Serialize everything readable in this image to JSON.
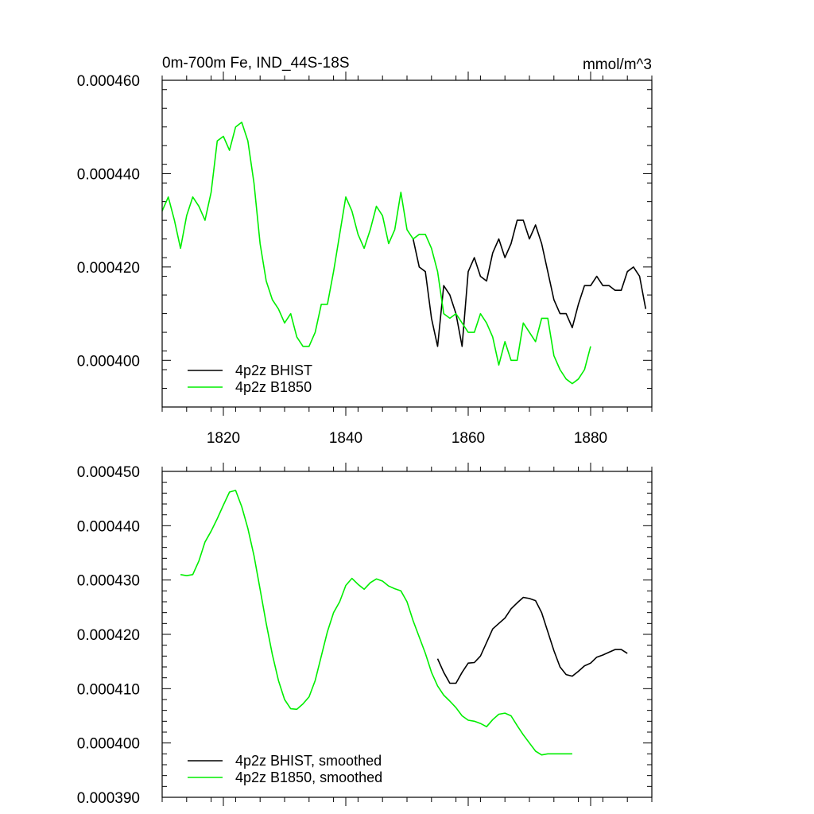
{
  "chart_data": [
    {
      "type": "line",
      "title": "0m-700m Fe, IND_44S-18S",
      "units": "mmol/m^3",
      "xlim": [
        1810,
        1890
      ],
      "ylim": [
        0.00039,
        0.00046
      ],
      "xticks": [
        1820,
        1840,
        1860,
        1880
      ],
      "xtick_labels": [
        "1820",
        "1840",
        "1860",
        "1880"
      ],
      "yticks": [
        0.0004,
        0.00042,
        0.00044,
        0.00046
      ],
      "ytick_labels": [
        "0.000400",
        "0.000420",
        "0.000440",
        "0.000460"
      ],
      "legend_position": "bottom-left",
      "series": [
        {
          "name": "4p2z BHIST",
          "color": "#000000",
          "x": [
            1851,
            1852,
            1853,
            1854,
            1855,
            1856,
            1857,
            1858,
            1859,
            1860,
            1861,
            1862,
            1863,
            1864,
            1865,
            1866,
            1867,
            1868,
            1869,
            1870,
            1871,
            1872,
            1873,
            1874,
            1875,
            1876,
            1877,
            1878,
            1879,
            1880,
            1881,
            1882,
            1883,
            1884,
            1885,
            1886,
            1887,
            1888,
            1889
          ],
          "y": [
            0.000426,
            0.00042,
            0.000419,
            0.000409,
            0.000403,
            0.000416,
            0.000414,
            0.00041,
            0.000403,
            0.000419,
            0.000422,
            0.000418,
            0.000417,
            0.000423,
            0.000426,
            0.000422,
            0.000425,
            0.00043,
            0.00043,
            0.000426,
            0.000429,
            0.000425,
            0.000419,
            0.000413,
            0.00041,
            0.00041,
            0.000407,
            0.000412,
            0.000416,
            0.000416,
            0.000418,
            0.000416,
            0.000416,
            0.000415,
            0.000415,
            0.000419,
            0.00042,
            0.000418,
            0.000411
          ]
        },
        {
          "name": "4p2z B1850",
          "color": "#00ee00",
          "x": [
            1810,
            1811,
            1812,
            1813,
            1814,
            1815,
            1816,
            1817,
            1818,
            1819,
            1820,
            1821,
            1822,
            1823,
            1824,
            1825,
            1826,
            1827,
            1828,
            1829,
            1830,
            1831,
            1832,
            1833,
            1834,
            1835,
            1836,
            1837,
            1838,
            1839,
            1840,
            1841,
            1842,
            1843,
            1844,
            1845,
            1846,
            1847,
            1848,
            1849,
            1850,
            1851,
            1852,
            1853,
            1854,
            1855,
            1856,
            1857,
            1858,
            1859,
            1860,
            1861,
            1862,
            1863,
            1864,
            1865,
            1866,
            1867,
            1868,
            1869,
            1870,
            1871,
            1872,
            1873,
            1874,
            1875,
            1876,
            1877,
            1878,
            1879,
            1880
          ],
          "y": [
            0.000432,
            0.000435,
            0.00043,
            0.000424,
            0.000431,
            0.000435,
            0.000433,
            0.00043,
            0.000436,
            0.000447,
            0.000448,
            0.000445,
            0.00045,
            0.000451,
            0.000447,
            0.000438,
            0.000425,
            0.000417,
            0.000413,
            0.000411,
            0.000408,
            0.00041,
            0.000405,
            0.000403,
            0.000403,
            0.000406,
            0.000412,
            0.000412,
            0.000419,
            0.000427,
            0.000435,
            0.000432,
            0.000427,
            0.000424,
            0.000428,
            0.000433,
            0.000431,
            0.000425,
            0.000428,
            0.000436,
            0.000428,
            0.000426,
            0.000427,
            0.000427,
            0.000424,
            0.000419,
            0.00041,
            0.000409,
            0.00041,
            0.000408,
            0.000406,
            0.000406,
            0.00041,
            0.000408,
            0.000405,
            0.000399,
            0.000404,
            0.0004,
            0.0004,
            0.000408,
            0.000406,
            0.000404,
            0.000409,
            0.000409,
            0.000401,
            0.000398,
            0.000396,
            0.000395,
            0.000396,
            0.000398,
            0.000403
          ]
        }
      ]
    },
    {
      "type": "line",
      "title": "",
      "xlim": [
        1810,
        1890
      ],
      "ylim": [
        0.00039,
        0.00045
      ],
      "xticks": [
        1820,
        1840,
        1860,
        1880
      ],
      "xtick_labels": [],
      "yticks": [
        0.00039,
        0.0004,
        0.00041,
        0.00042,
        0.00043,
        0.00044,
        0.00045
      ],
      "ytick_labels": [
        "0.000390",
        "0.000400",
        "0.000410",
        "0.000420",
        "0.000430",
        "0.000440",
        "0.000450"
      ],
      "legend_position": "bottom-left",
      "series": [
        {
          "name": "4p2z BHIST, smoothed",
          "color": "#000000",
          "x": [
            1855,
            1856,
            1857,
            1858,
            1859,
            1860,
            1861,
            1862,
            1863,
            1864,
            1865,
            1866,
            1867,
            1868,
            1869,
            1870,
            1871,
            1872,
            1873,
            1874,
            1875,
            1876,
            1877,
            1878,
            1879,
            1880,
            1881,
            1882,
            1883,
            1884,
            1885,
            1886
          ],
          "y": [
            0.0004155,
            0.000413,
            0.000411,
            0.000411,
            0.000413,
            0.0004147,
            0.0004148,
            0.000416,
            0.0004185,
            0.000421,
            0.000422,
            0.000423,
            0.0004247,
            0.0004258,
            0.0004268,
            0.0004266,
            0.0004262,
            0.000424,
            0.0004205,
            0.000417,
            0.000414,
            0.0004126,
            0.0004123,
            0.0004132,
            0.0004142,
            0.0004147,
            0.0004158,
            0.0004162,
            0.0004167,
            0.0004172,
            0.0004172,
            0.0004165
          ]
        },
        {
          "name": "4p2z B1850, smoothed",
          "color": "#00ee00",
          "x": [
            1813,
            1814,
            1815,
            1816,
            1817,
            1818,
            1819,
            1820,
            1821,
            1822,
            1823,
            1824,
            1825,
            1826,
            1827,
            1828,
            1829,
            1830,
            1831,
            1832,
            1833,
            1834,
            1835,
            1836,
            1837,
            1838,
            1839,
            1840,
            1841,
            1842,
            1843,
            1844,
            1845,
            1846,
            1847,
            1848,
            1849,
            1850,
            1851,
            1852,
            1853,
            1854,
            1855,
            1856,
            1857,
            1858,
            1859,
            1860,
            1861,
            1862,
            1863,
            1864,
            1865,
            1866,
            1867,
            1868,
            1869,
            1870,
            1871,
            1872,
            1873,
            1874,
            1875,
            1876,
            1877
          ],
          "y": [
            0.000431,
            0.0004308,
            0.000431,
            0.0004335,
            0.000437,
            0.000439,
            0.0004413,
            0.0004438,
            0.0004462,
            0.0004465,
            0.0004435,
            0.0004395,
            0.0004345,
            0.0004283,
            0.000422,
            0.0004163,
            0.0004115,
            0.000408,
            0.0004063,
            0.0004062,
            0.0004072,
            0.0004085,
            0.0004115,
            0.000416,
            0.0004205,
            0.000424,
            0.000426,
            0.000429,
            0.0004303,
            0.0004292,
            0.0004283,
            0.0004295,
            0.0004302,
            0.0004298,
            0.0004289,
            0.0004284,
            0.000428,
            0.000426,
            0.0004225,
            0.0004195,
            0.0004165,
            0.000413,
            0.0004105,
            0.0004088,
            0.0004077,
            0.0004065,
            0.000405,
            0.0004042,
            0.000404,
            0.0004036,
            0.000403,
            0.0004043,
            0.0004053,
            0.0004055,
            0.000405,
            0.0004032,
            0.0004015,
            0.0004,
            0.0003985,
            0.0003978,
            0.000398,
            0.000398,
            0.000398,
            0.000398,
            0.000398
          ]
        }
      ]
    }
  ]
}
